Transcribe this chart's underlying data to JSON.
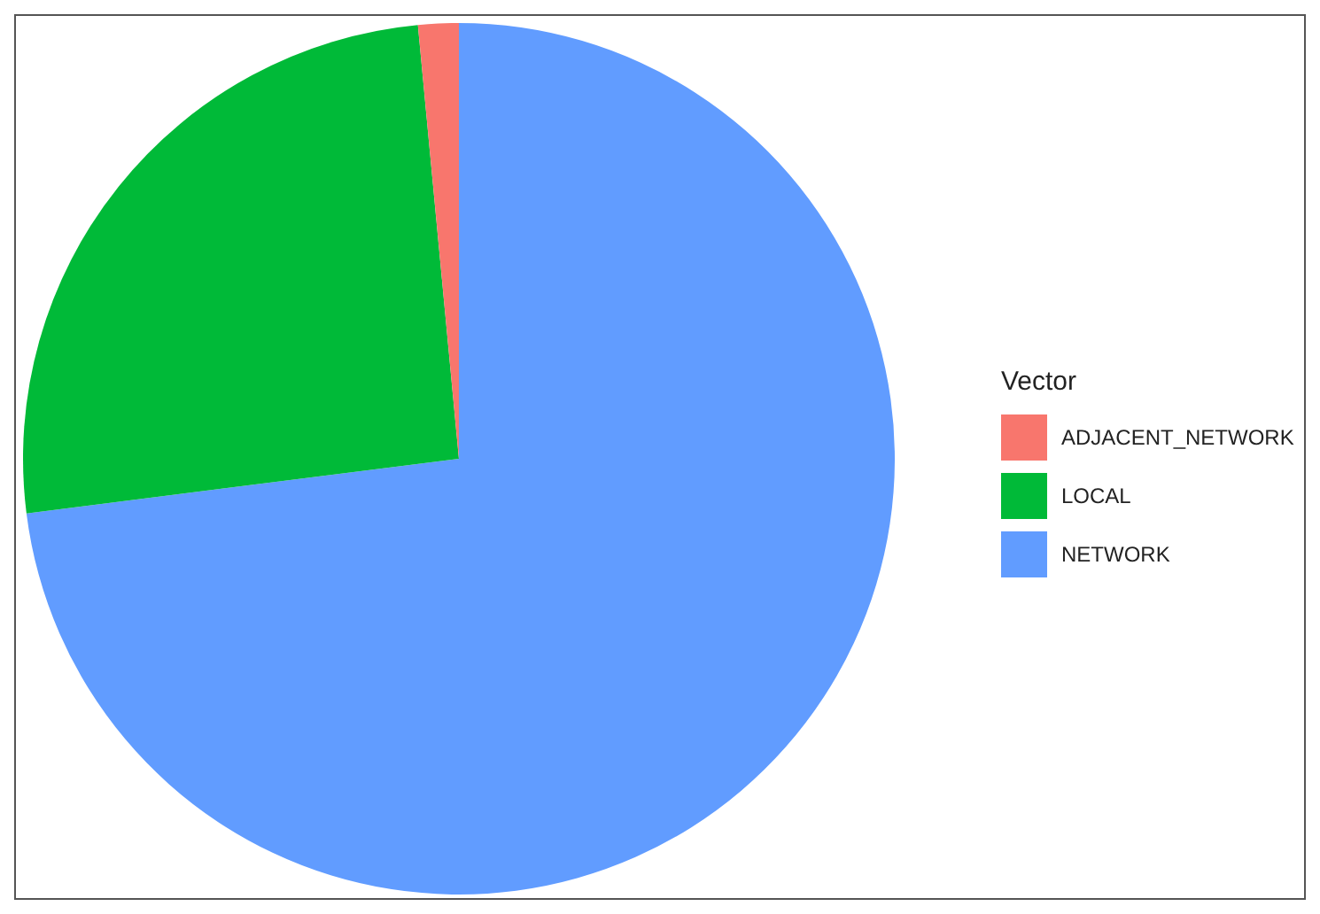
{
  "chart_data": {
    "type": "pie",
    "legend_title": "Vector",
    "legend": "right",
    "categories": [
      "ADJACENT_NETWORK",
      "LOCAL",
      "NETWORK"
    ],
    "values": [
      1.5,
      25.5,
      73
    ],
    "colors": [
      "#f8766d",
      "#00ba38",
      "#619cff"
    ]
  }
}
